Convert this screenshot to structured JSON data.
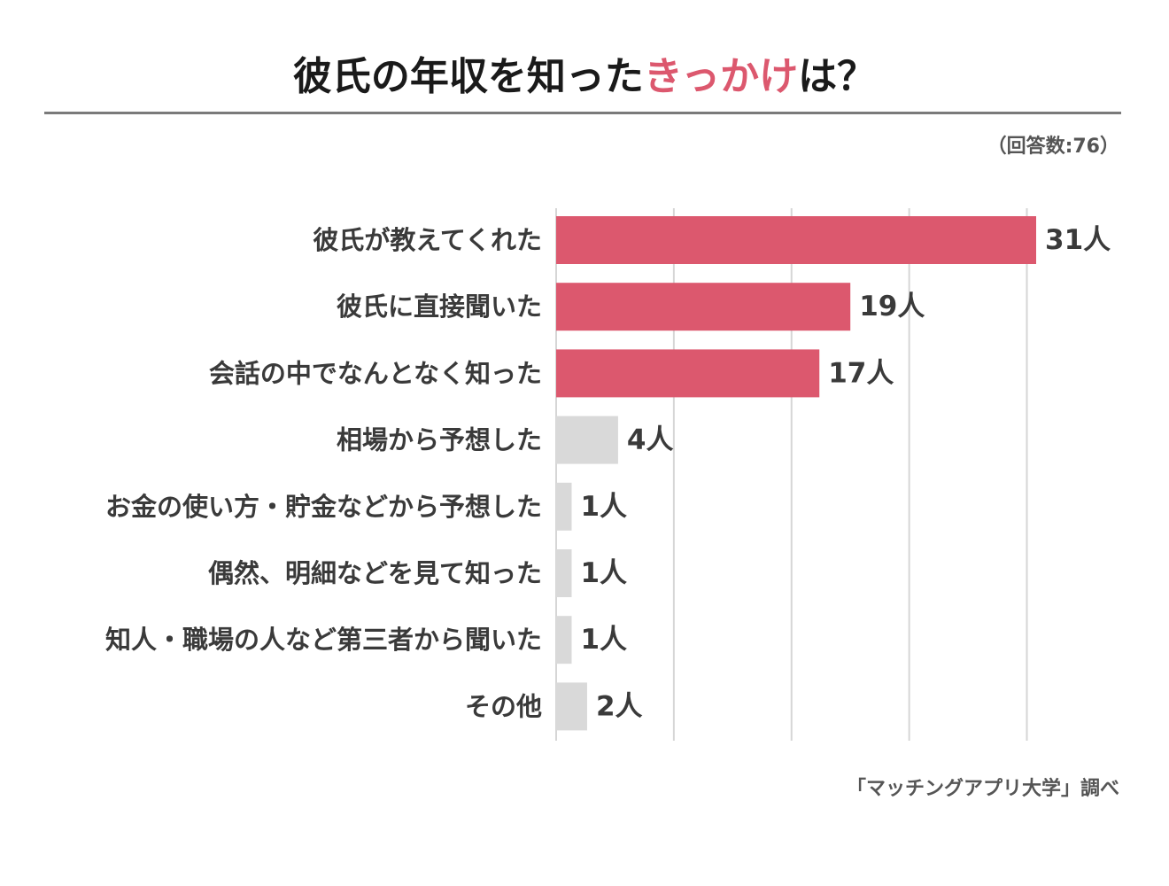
{
  "header": {
    "title_prefix": "彼氏の年収を知った",
    "title_accent": "きっかけ",
    "title_suffix": "は？",
    "respondents": "（回答数:76）"
  },
  "colors": {
    "highlight": "#dc586e",
    "muted": "#d9d9d9",
    "grid": "#d6d6d6"
  },
  "chart_data": {
    "type": "bar",
    "orientation": "horizontal",
    "categories": [
      "彼氏が教えてくれた",
      "彼氏に直接聞いた",
      "会話の中でなんとなく知った",
      "相場から予想した",
      "お金の使い方・貯金などから予想した",
      "偶然、明細などを見て知った",
      "知人・職場の人など第三者から聞いた",
      "その他"
    ],
    "values": [
      31,
      19,
      17,
      4,
      1,
      1,
      1,
      2
    ],
    "value_labels": [
      "31人",
      "19人",
      "17人",
      "4人",
      "1人",
      "1人",
      "1人",
      "2人"
    ],
    "highlighted": [
      true,
      true,
      true,
      false,
      false,
      false,
      false,
      false
    ],
    "xlim": [
      0,
      31
    ],
    "grid_values": [
      0,
      7.6,
      15.2,
      22.8,
      30.4
    ],
    "grid": true
  },
  "footer": {
    "source": "「マッチングアプリ大学」調べ"
  }
}
